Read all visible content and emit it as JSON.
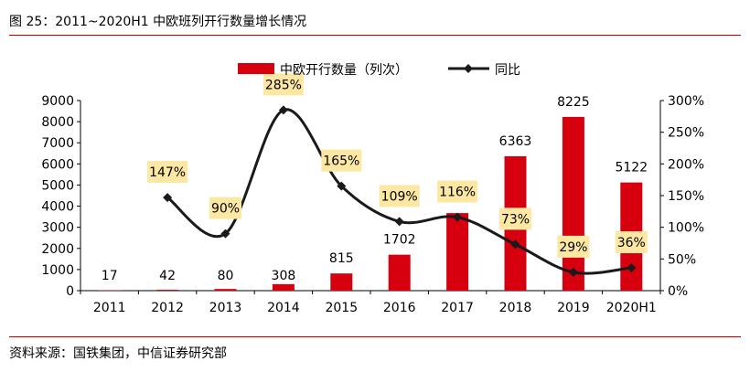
{
  "header": {
    "figure_title": "图 25：2011~2020H1 中欧班列开行数量增长情况"
  },
  "footer": {
    "source": "资料来源：国铁集团，中信证券研究部"
  },
  "colors": {
    "bar": "#d7000f",
    "line": "#1a1a1a",
    "label_bg": "#fde8a3",
    "rule": "#c00000"
  },
  "chart_data": {
    "type": "bar",
    "title": "",
    "categories": [
      "2011",
      "2012",
      "2013",
      "2014",
      "2015",
      "2016",
      "2017",
      "2018",
      "2019",
      "2020H1"
    ],
    "series": [
      {
        "name": "中欧开行数量（列次）",
        "type": "bar",
        "axis": "left",
        "values": [
          17,
          42,
          80,
          308,
          815,
          1702,
          3673,
          6363,
          8225,
          5122
        ],
        "labels": [
          "17",
          "42",
          "80",
          "308",
          "815",
          "1702",
          "",
          "6363",
          "8225",
          "5122"
        ]
      },
      {
        "name": "同比",
        "type": "line",
        "axis": "right",
        "values": [
          null,
          147,
          90,
          285,
          165,
          109,
          116,
          73,
          29,
          36
        ],
        "labels": [
          "",
          "147%",
          "90%",
          "285%",
          "165%",
          "109%",
          "116%",
          "73%",
          "29%",
          "36%"
        ]
      }
    ],
    "y_left": {
      "ylim": [
        0,
        9000
      ],
      "ticks": [
        "0",
        "1000",
        "2000",
        "3000",
        "4000",
        "5000",
        "6000",
        "7000",
        "8000",
        "9000"
      ]
    },
    "y_right": {
      "ylim": [
        0,
        300
      ],
      "ticks": [
        "0%",
        "50%",
        "100%",
        "150%",
        "200%",
        "250%",
        "300%"
      ]
    },
    "legend_position": "top",
    "grid": false
  }
}
